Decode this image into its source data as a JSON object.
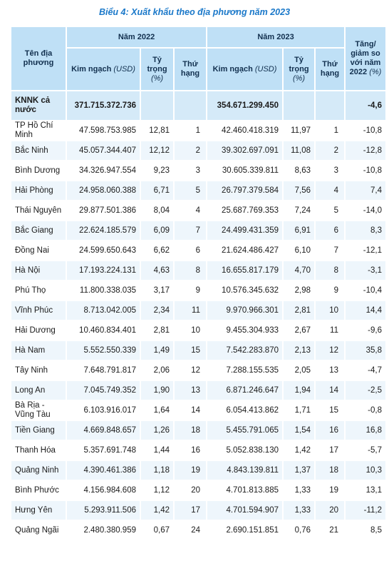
{
  "title": "Biểu 4: Xuất khẩu theo địa phương năm 2023",
  "table": {
    "header": {
      "name": "Tên địa phương",
      "year_a": "Năm 2022",
      "year_b": "Năm 2023",
      "change": {
        "label": "Tăng/ giảm so với năm 2022",
        "unit": "(%)"
      },
      "value": {
        "label": "Kim ngạch",
        "unit": "(USD)"
      },
      "share": {
        "label": "Tỷ trọng",
        "unit": "(%)"
      },
      "rank": "Thứ hạng"
    },
    "rows": [
      [
        "KNNK cả nước",
        "371.715.372.736",
        null,
        null,
        "354.671.299.450",
        null,
        null,
        "-4,6"
      ],
      [
        "TP Hồ Chí Minh",
        "47.598.753.985",
        "12,81",
        "1",
        "42.460.418.319",
        "11,97",
        "1",
        "-10,8"
      ],
      [
        "Bắc Ninh",
        "45.057.344.407",
        "12,12",
        "2",
        "39.302.697.091",
        "11,08",
        "2",
        "-12,8"
      ],
      [
        "Bình Dương",
        "34.326.947.554",
        "9,23",
        "3",
        "30.605.339.811",
        "8,63",
        "3",
        "-10,8"
      ],
      [
        "Hải Phòng",
        "24.958.060.388",
        "6,71",
        "5",
        "26.797.379.584",
        "7,56",
        "4",
        "7,4"
      ],
      [
        "Thái Nguyên",
        "29.877.501.386",
        "8,04",
        "4",
        "25.687.769.353",
        "7,24",
        "5",
        "-14,0"
      ],
      [
        "Bắc Giang",
        "22.624.185.579",
        "6,09",
        "7",
        "24.499.431.359",
        "6,91",
        "6",
        "8,3"
      ],
      [
        "Đồng Nai",
        "24.599.650.643",
        "6,62",
        "6",
        "21.624.486.427",
        "6,10",
        "7",
        "-12,1"
      ],
      [
        "Hà Nội",
        "17.193.224.131",
        "4,63",
        "8",
        "16.655.817.179",
        "4,70",
        "8",
        "-3,1"
      ],
      [
        "Phú Thọ",
        "11.800.338.035",
        "3,17",
        "9",
        "10.576.345.632",
        "2,98",
        "9",
        "-10,4"
      ],
      [
        "Vĩnh Phúc",
        "8.713.042.005",
        "2,34",
        "11",
        "9.970.966.301",
        "2,81",
        "10",
        "14,4"
      ],
      [
        "Hải Dương",
        "10.460.834.401",
        "2,81",
        "10",
        "9.455.304.933",
        "2,67",
        "11",
        "-9,6"
      ],
      [
        "Hà Nam",
        "5.552.550.339",
        "1,49",
        "15",
        "7.542.283.870",
        "2,13",
        "12",
        "35,8"
      ],
      [
        "Tây Ninh",
        "7.648.791.817",
        "2,06",
        "12",
        "7.288.155.535",
        "2,05",
        "13",
        "-4,7"
      ],
      [
        "Long An",
        "7.045.749.352",
        "1,90",
        "13",
        "6.871.246.647",
        "1,94",
        "14",
        "-2,5"
      ],
      [
        "Bà Rịa - Vũng Tàu",
        "6.103.916.017",
        "1,64",
        "14",
        "6.054.413.862",
        "1,71",
        "15",
        "-0,8"
      ],
      [
        "Tiền Giang",
        "4.669.848.657",
        "1,26",
        "18",
        "5.455.791.065",
        "1,54",
        "16",
        "16,8"
      ],
      [
        "Thanh Hóa",
        "5.357.691.748",
        "1,44",
        "16",
        "5.052.838.130",
        "1,42",
        "17",
        "-5,7"
      ],
      [
        "Quảng Ninh",
        "4.390.461.386",
        "1,18",
        "19",
        "4.843.139.811",
        "1,37",
        "18",
        "10,3"
      ],
      [
        "Bình Phước",
        "4.156.984.608",
        "1,12",
        "20",
        "4.701.813.885",
        "1,33",
        "19",
        "13,1"
      ],
      [
        "Hưng Yên",
        "5.293.911.506",
        "1,42",
        "17",
        "4.701.594.907",
        "1,33",
        "20",
        "-11,2"
      ],
      [
        "Quảng Ngãi",
        "2.480.380.959",
        "0,67",
        "24",
        "2.690.151.851",
        "0,76",
        "21",
        "8,5"
      ]
    ]
  }
}
